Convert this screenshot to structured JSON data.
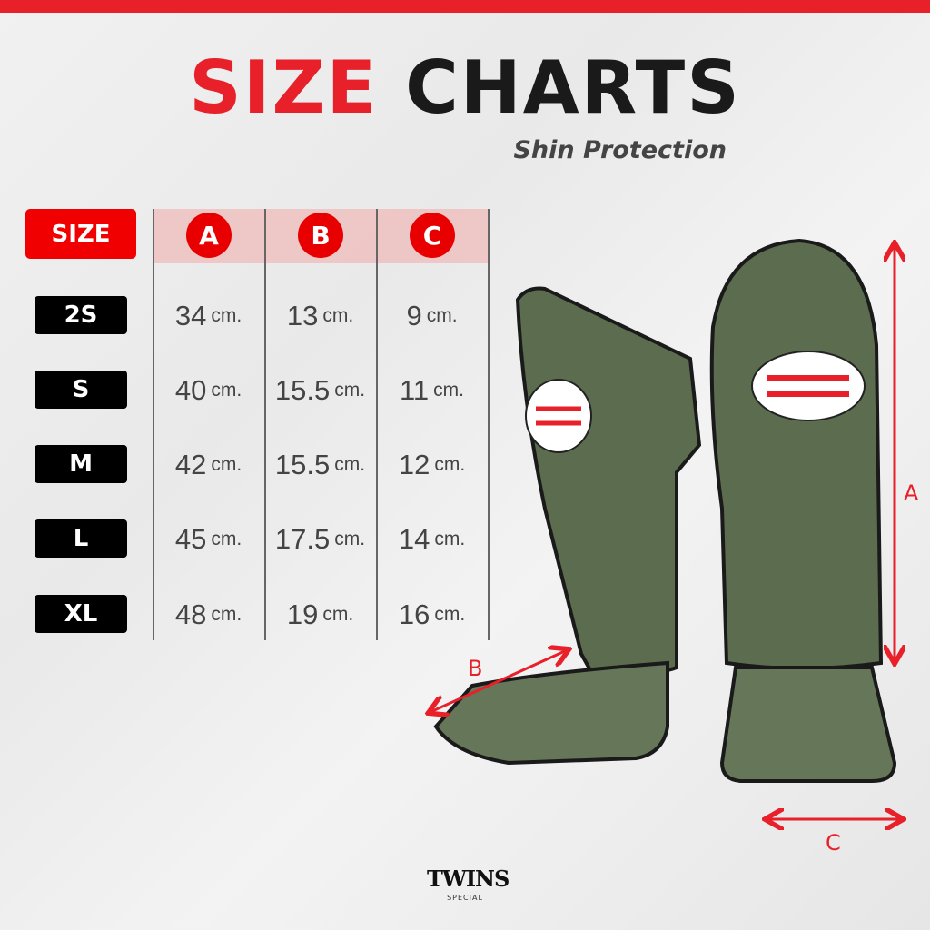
{
  "header": {
    "title_part1": "SIZE",
    "title_part2": "CHARTS",
    "subtitle": "Shin Protection"
  },
  "table": {
    "size_label": "SIZE",
    "columns": [
      "A",
      "B",
      "C"
    ],
    "unit": "cm.",
    "rows": [
      {
        "size": "2S",
        "values": [
          "34",
          "13",
          "9"
        ]
      },
      {
        "size": "S",
        "values": [
          "40",
          "15.5",
          "11"
        ]
      },
      {
        "size": "M",
        "values": [
          "42",
          "15.5",
          "12"
        ]
      },
      {
        "size": "L",
        "values": [
          "45",
          "17.5",
          "14"
        ]
      },
      {
        "size": "XL",
        "values": [
          "48",
          "19",
          "16"
        ]
      }
    ]
  },
  "diagram": {
    "labels": {
      "a": "A",
      "b": "B",
      "c": "C"
    },
    "product_color": "#5b6c4f"
  },
  "product_logo_text": "TWINS SPECIAL",
  "footer_logo": {
    "word": "TWINS",
    "sub": "SPECIAL"
  },
  "colors": {
    "accent": "#e8202a",
    "badge": "#000000",
    "header_band": "#f2c4c4"
  }
}
